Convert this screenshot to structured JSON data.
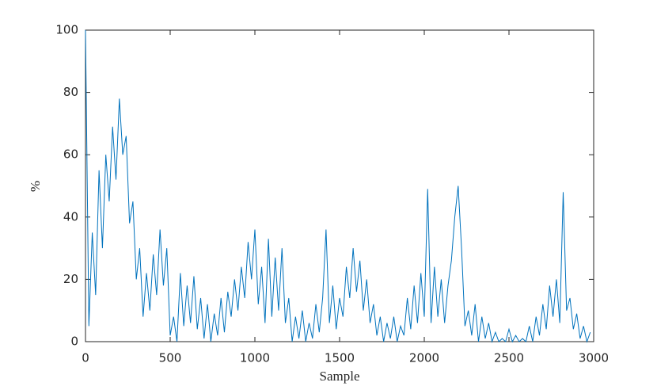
{
  "chart_data": {
    "type": "line",
    "x_label": "Sample",
    "y_label": "%",
    "x": [
      0,
      20,
      40,
      60,
      80,
      100,
      120,
      140,
      160,
      180,
      200,
      220,
      240,
      260,
      280,
      300,
      320,
      340,
      360,
      380,
      400,
      420,
      440,
      460,
      480,
      500,
      520,
      540,
      560,
      580,
      600,
      620,
      640,
      660,
      680,
      700,
      720,
      740,
      760,
      780,
      800,
      820,
      840,
      860,
      880,
      900,
      920,
      940,
      960,
      980,
      1000,
      1020,
      1040,
      1060,
      1080,
      1100,
      1120,
      1140,
      1160,
      1180,
      1200,
      1220,
      1240,
      1260,
      1280,
      1300,
      1320,
      1340,
      1360,
      1380,
      1400,
      1420,
      1440,
      1460,
      1480,
      1500,
      1520,
      1540,
      1560,
      1580,
      1600,
      1620,
      1640,
      1660,
      1680,
      1700,
      1720,
      1740,
      1760,
      1780,
      1800,
      1820,
      1840,
      1860,
      1880,
      1900,
      1920,
      1940,
      1960,
      1980,
      2000,
      2020,
      2040,
      2060,
      2080,
      2100,
      2120,
      2140,
      2160,
      2180,
      2200,
      2220,
      2240,
      2260,
      2280,
      2300,
      2320,
      2340,
      2360,
      2380,
      2400,
      2420,
      2440,
      2460,
      2480,
      2500,
      2520,
      2540,
      2560,
      2580,
      2600,
      2620,
      2640,
      2660,
      2680,
      2700,
      2720,
      2740,
      2760,
      2780,
      2800,
      2820,
      2840,
      2860,
      2880,
      2900,
      2920,
      2940,
      2960,
      2980
    ],
    "values": [
      100,
      5,
      35,
      15,
      55,
      30,
      60,
      45,
      69,
      52,
      78,
      60,
      66,
      38,
      45,
      20,
      30,
      8,
      22,
      10,
      28,
      15,
      36,
      18,
      30,
      2,
      8,
      0,
      22,
      5,
      18,
      6,
      21,
      4,
      14,
      1,
      12,
      0,
      9,
      2,
      14,
      3,
      16,
      8,
      20,
      10,
      24,
      14,
      32,
      20,
      36,
      12,
      24,
      6,
      33,
      8,
      27,
      10,
      30,
      6,
      14,
      0,
      8,
      1,
      10,
      0,
      6,
      1,
      12,
      3,
      14,
      36,
      6,
      18,
      4,
      14,
      8,
      24,
      14,
      30,
      16,
      26,
      10,
      20,
      6,
      12,
      2,
      8,
      0,
      6,
      1,
      8,
      0,
      5,
      2,
      14,
      4,
      18,
      6,
      22,
      8,
      49,
      6,
      24,
      8,
      20,
      6,
      18,
      26,
      40,
      50,
      30,
      5,
      10,
      2,
      12,
      0,
      8,
      1,
      6,
      0,
      3,
      0,
      1,
      0,
      4,
      0,
      2,
      0,
      1,
      0,
      5,
      0,
      8,
      2,
      12,
      4,
      18,
      8,
      20,
      6,
      48,
      10,
      14,
      4,
      9,
      1,
      5,
      0,
      3
    ],
    "color": "#0072bd",
    "xlim": [
      0,
      3000
    ],
    "xticks": [
      0,
      500,
      1000,
      1500,
      2000,
      2500,
      3000
    ],
    "ylim": [
      0,
      100
    ],
    "yticks": [
      0,
      20,
      40,
      60,
      80,
      100
    ]
  }
}
